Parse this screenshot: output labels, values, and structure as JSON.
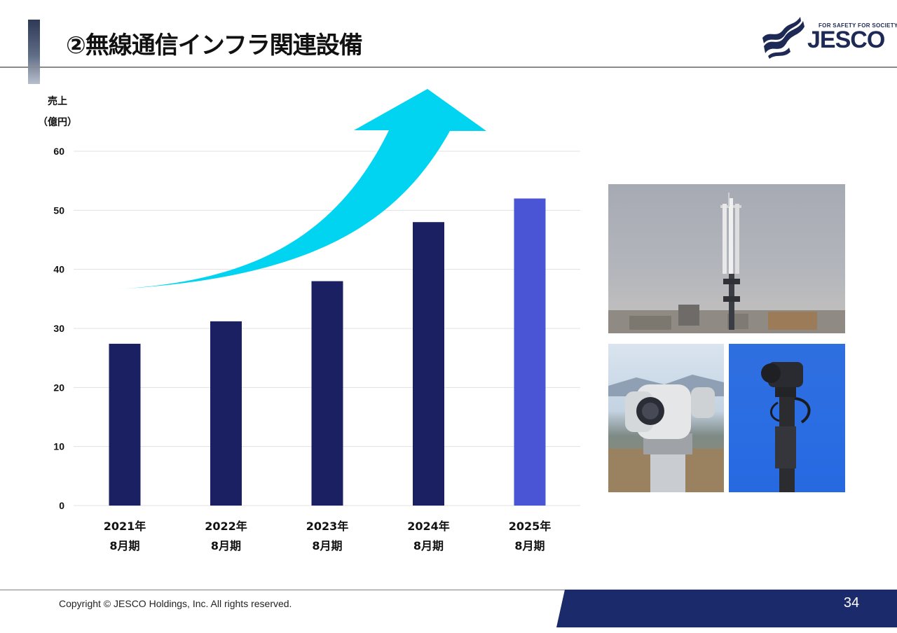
{
  "title": "②無線通信インフラ関連設備",
  "logo": {
    "tagline": "FOR SAFETY FOR SOCIETY",
    "wordmark": "JESCO",
    "icon": "jesco-wave-logo"
  },
  "y_axis_label_line1": "売上",
  "y_axis_label_line2": "（億円）",
  "colors": {
    "bar": "#1b2063",
    "bar_latest": "#4a55d6",
    "arrow": "#00d4f0",
    "footer": "#1b2a6b",
    "grid": "#e0e0e0"
  },
  "chart_data": {
    "type": "bar",
    "categories": [
      [
        "2021年",
        "8月期"
      ],
      [
        "2022年",
        "8月期"
      ],
      [
        "2023年",
        "8月期"
      ],
      [
        "2024年",
        "8月期"
      ],
      [
        "2025年",
        "8月期"
      ]
    ],
    "values": [
      27.4,
      31.2,
      38,
      48,
      52
    ],
    "ylabel": "売上（億円）",
    "ylim": [
      0,
      60
    ],
    "yticks": [
      0,
      10,
      20,
      30,
      40,
      50,
      60
    ],
    "grid": true,
    "annotation": "upward growth arrow"
  },
  "photos": [
    {
      "name": "antenna-tower-photo",
      "subject": "antenna-tower"
    },
    {
      "name": "surveillance-camera-photo",
      "subject": "pan-tilt-camera"
    },
    {
      "name": "pole-mounted-camera-photo",
      "subject": "pole-camera"
    }
  ],
  "footer": {
    "copyright": "Copyright © JESCO Holdings, Inc.  All rights reserved.",
    "page_number": "34"
  }
}
